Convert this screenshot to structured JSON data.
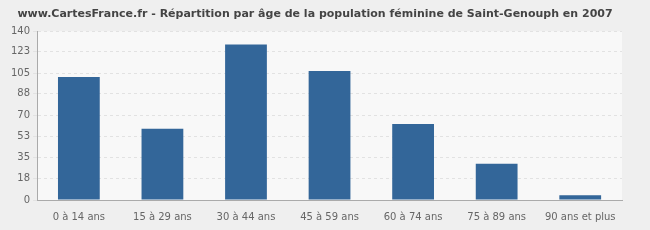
{
  "chart_data": {
    "type": "bar",
    "title": "www.CartesFrance.fr - Répartition par âge de la population féminine de Saint-Genouph en 2007",
    "categories": [
      "0 à 14 ans",
      "15 à 29 ans",
      "30 à 44 ans",
      "45 à 59 ans",
      "60 à 74 ans",
      "75 à 89 ans",
      "90 ans et plus"
    ],
    "values": [
      102,
      59,
      129,
      107,
      63,
      30,
      4
    ],
    "color": "#336699",
    "ylim": [
      0,
      140
    ],
    "yticks": [
      0,
      18,
      35,
      53,
      70,
      88,
      105,
      123,
      140
    ],
    "grid": true
  }
}
